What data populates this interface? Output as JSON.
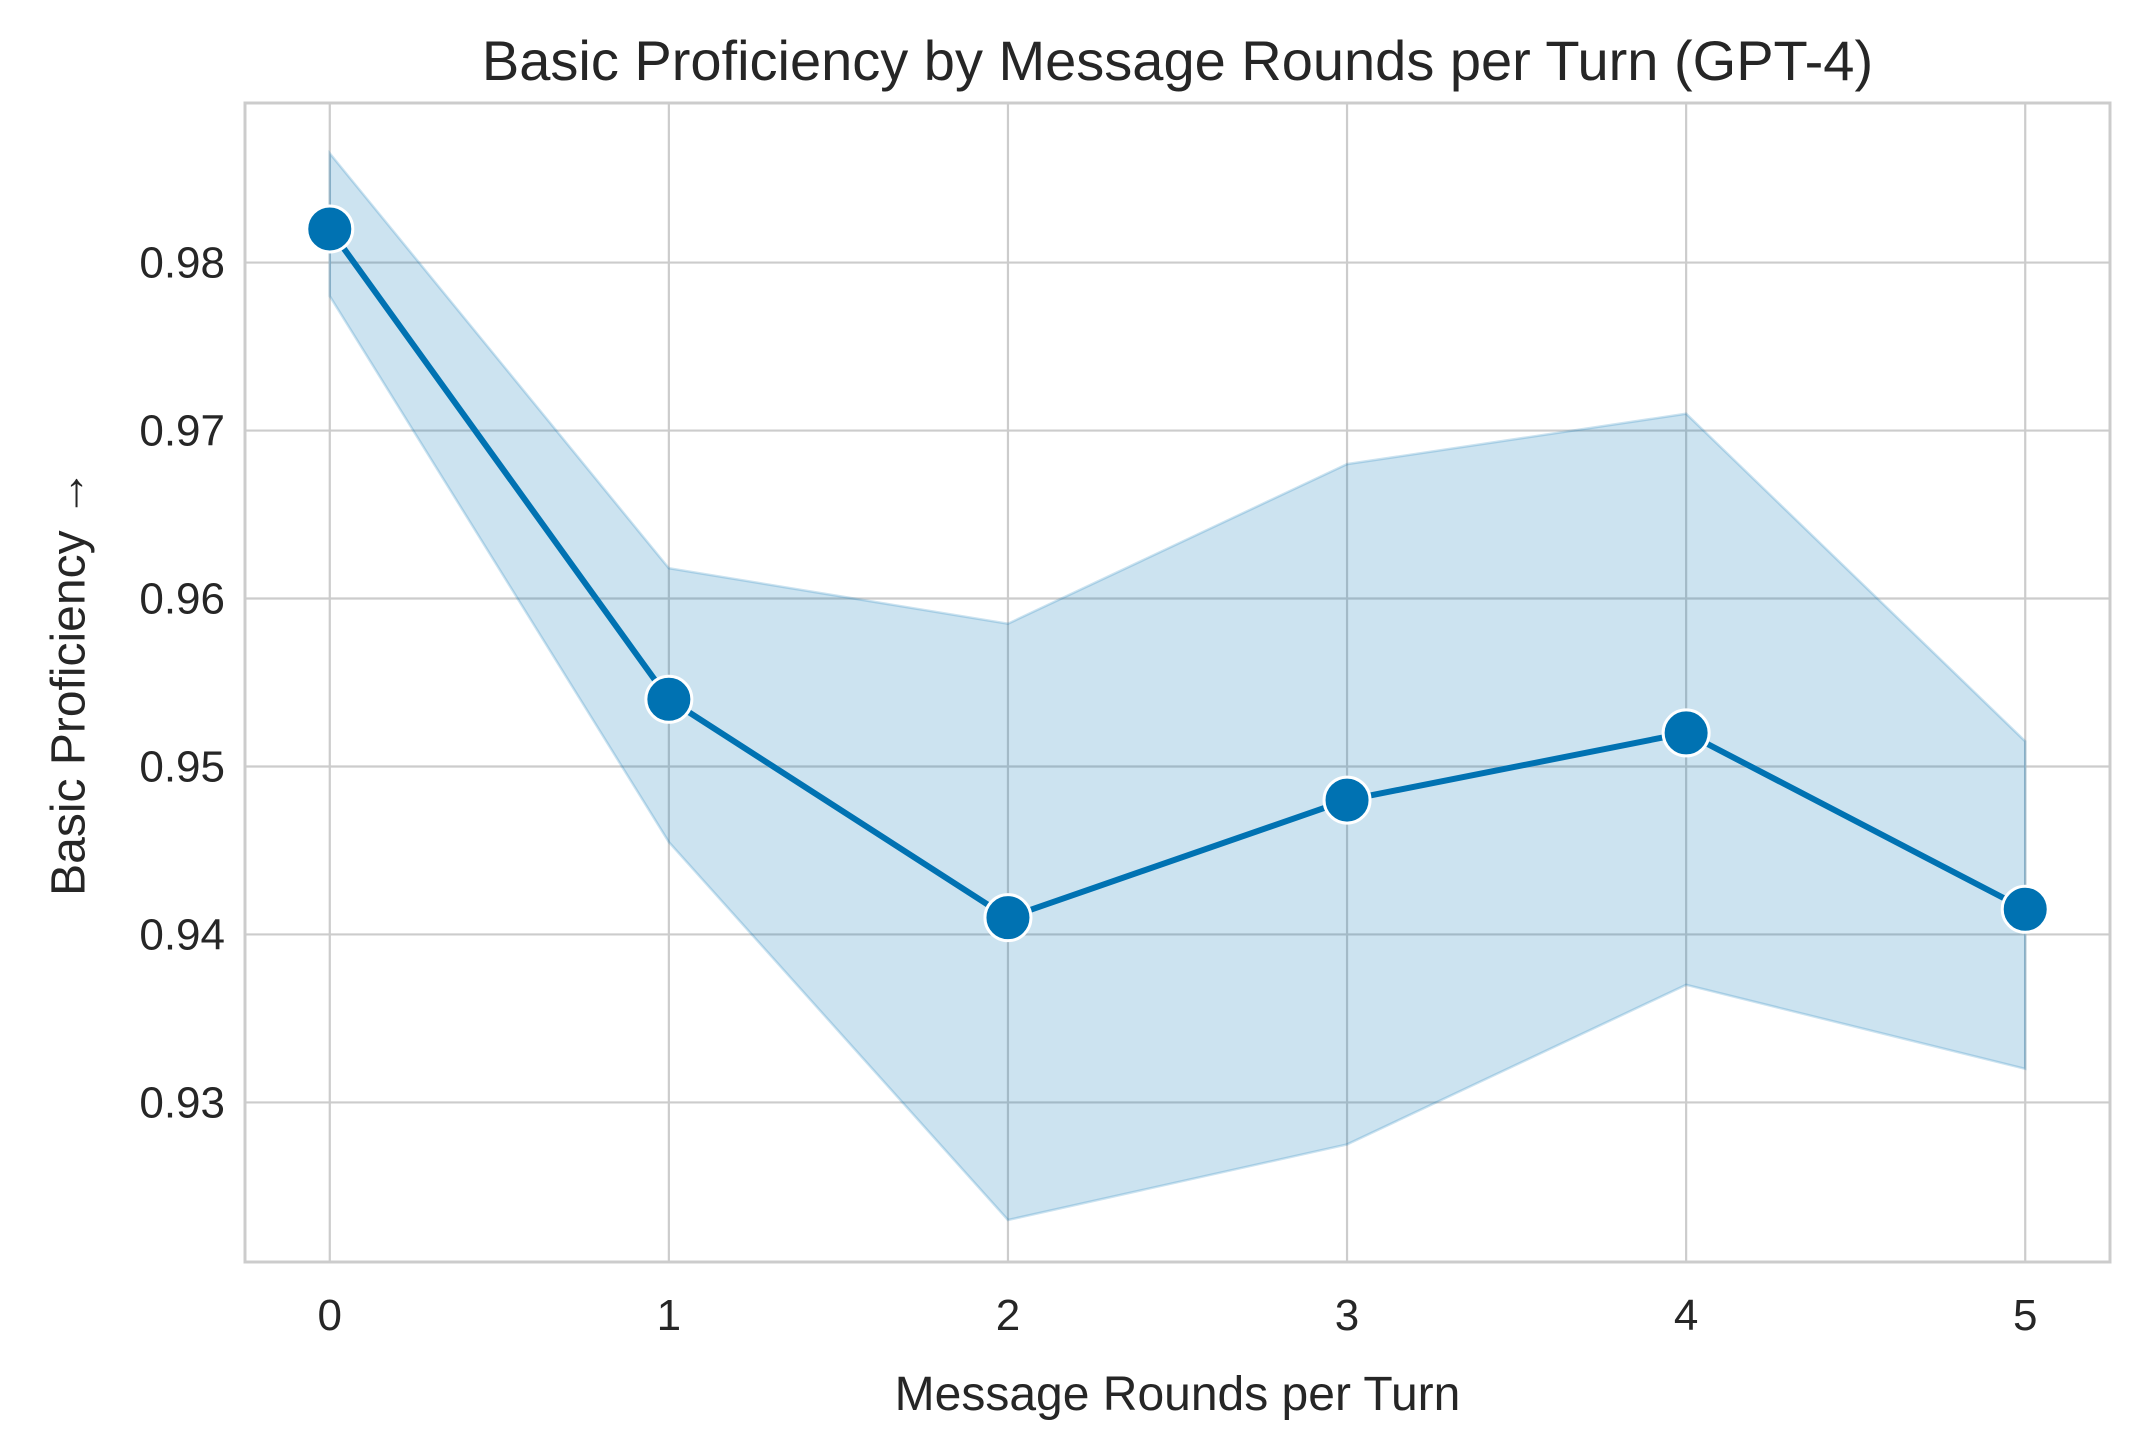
{
  "chart_data": {
    "type": "line",
    "title": "Basic Proficiency by Message Rounds per Turn (GPT-4)",
    "xlabel": "Message Rounds per Turn",
    "ylabel": "Basic Proficiency →",
    "x": [
      0,
      1,
      2,
      3,
      4,
      5
    ],
    "x_ticks": [
      "0",
      "1",
      "2",
      "3",
      "4",
      "5"
    ],
    "y_ticks": [
      "0.93",
      "0.94",
      "0.95",
      "0.96",
      "0.97",
      "0.98"
    ],
    "xlim": [
      -0.25,
      5.25
    ],
    "ylim": [
      0.9205,
      0.9895
    ],
    "grid": true,
    "legend": "none",
    "series": [
      {
        "values": [
          0.982,
          0.954,
          0.941,
          0.948,
          0.952,
          0.9415
        ],
        "ci_upper": [
          0.9865,
          0.9618,
          0.9585,
          0.968,
          0.971,
          0.9515
        ],
        "ci_lower": [
          0.978,
          0.9455,
          0.923,
          0.9275,
          0.937,
          0.932
        ],
        "color": "#0072b2"
      }
    ]
  }
}
